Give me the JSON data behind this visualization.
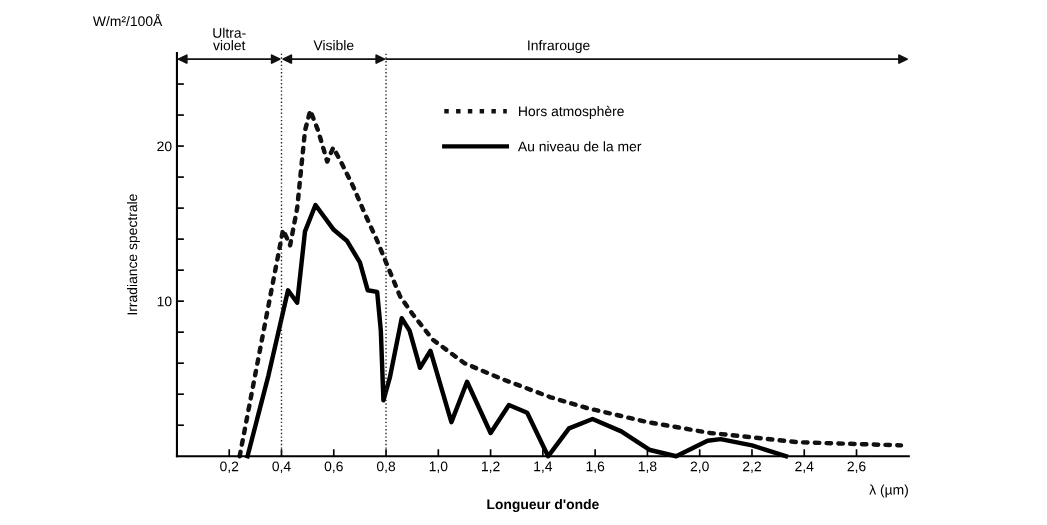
{
  "chart_data": {
    "type": "line",
    "xlabel": "Longueur d'onde",
    "ylabel": "Irradiance spectrale",
    "annotations": [
      "W/m²/100Å",
      "λ (µm)",
      "Ultra-\nviolet",
      "Visible",
      "Infrarouge"
    ],
    "xlim": [
      0,
      2.8
    ],
    "ylim": [
      0,
      26
    ],
    "xticks": [
      {
        "value": 0.2,
        "label": "0,2"
      },
      {
        "value": 0.4,
        "label": "0,4"
      },
      {
        "value": 0.6,
        "label": "0,6"
      },
      {
        "value": 0.8,
        "label": "0,8"
      },
      {
        "value": 1.0,
        "label": "1,0"
      },
      {
        "value": 1.2,
        "label": "1,2"
      },
      {
        "value": 1.4,
        "label": "1,4"
      },
      {
        "value": 1.6,
        "label": "1,6"
      },
      {
        "value": 1.8,
        "label": "1,8"
      },
      {
        "value": 2.0,
        "label": "2,0"
      },
      {
        "value": 2.2,
        "label": "2,2"
      },
      {
        "value": 2.4,
        "label": "2,4"
      },
      {
        "value": 2.6,
        "label": "2,6"
      }
    ],
    "yticks": [
      {
        "value": 2,
        "label": null
      },
      {
        "value": 4,
        "label": null
      },
      {
        "value": 6,
        "label": null
      },
      {
        "value": 8,
        "label": null
      },
      10,
      {
        "value": 12,
        "label": null
      },
      {
        "value": 14,
        "label": null
      },
      {
        "value": 16,
        "label": null
      },
      {
        "value": 18,
        "label": null
      },
      20,
      {
        "value": 22,
        "label": null
      },
      {
        "value": 24,
        "label": null
      }
    ],
    "series": [
      {
        "name": "Hors atmosphère",
        "color": "#111111",
        "line_style": "dotted",
        "x": [
          0.24,
          0.3,
          0.35,
          0.406,
          0.433,
          0.46,
          0.49,
          0.51,
          0.54,
          0.575,
          0.598,
          0.63,
          0.674,
          0.72,
          0.766,
          0.8,
          0.854,
          0.9,
          0.98,
          1.1,
          1.24,
          1.43,
          1.57,
          1.8,
          2.04,
          2.38,
          2.77
        ],
        "values": [
          0,
          5.3,
          9.7,
          14.6,
          13.6,
          16,
          21,
          22.3,
          21,
          19.0,
          19.9,
          18.9,
          17.4,
          15.6,
          13.9,
          12.5,
          10.3,
          9.2,
          7.5,
          6.0,
          5.0,
          3.8,
          3.1,
          2.2,
          1.5,
          0.9,
          0.7
        ]
      },
      {
        "name": "Au niveau de la mer",
        "color": "#000000",
        "line_style": "solid",
        "x": [
          0.27,
          0.35,
          0.425,
          0.46,
          0.49,
          0.53,
          0.6,
          0.65,
          0.7,
          0.73,
          0.766,
          0.78,
          0.79,
          0.815,
          0.86,
          0.89,
          0.93,
          0.97,
          1.05,
          1.11,
          1.2,
          1.27,
          1.34,
          1.42,
          1.425,
          1.5,
          1.59,
          1.7,
          1.81,
          1.91,
          2.03,
          2.08,
          2.2,
          2.33
        ],
        "values": [
          0,
          5.2,
          10.7,
          9.9,
          14.5,
          16.2,
          14.6,
          13.9,
          12.5,
          10.7,
          10.6,
          8.1,
          3.6,
          5.1,
          8.9,
          8.1,
          5.7,
          6.8,
          2.2,
          4.8,
          1.5,
          3.3,
          2.8,
          0,
          0.1,
          1.8,
          2.4,
          1.6,
          0.4,
          0,
          1.0,
          1.1,
          0.7,
          0
        ]
      }
    ],
    "ref_lines": [
      {
        "axis": "x",
        "value": 0.4,
        "line_style": "dotted"
      },
      {
        "axis": "x",
        "value": 0.8,
        "line_style": "dotted"
      }
    ],
    "legend": "top",
    "grid": false
  }
}
